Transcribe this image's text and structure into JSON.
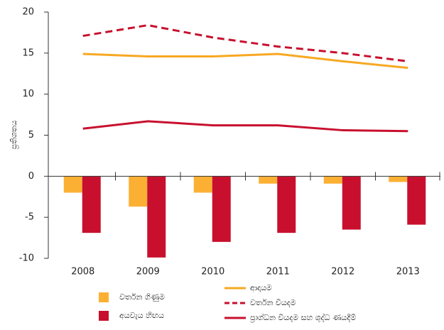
{
  "chart_data": {
    "type": "bar",
    "ylabel": "ප්‍රතිශතය",
    "categories": [
      "2008",
      "2009",
      "2010",
      "2011",
      "2012",
      "2013"
    ],
    "series": [
      {
        "name": "වර්තන ගිණුම",
        "kind": "bar",
        "color": "#fbb034",
        "values": [
          -2.0,
          -3.7,
          -2.0,
          -0.9,
          -0.9,
          -0.7
        ]
      },
      {
        "name": "අයවැය හිඟය",
        "kind": "bar",
        "color": "#c8102e",
        "values": [
          -6.9,
          -9.9,
          -8.0,
          -6.9,
          -6.5,
          -5.9
        ]
      },
      {
        "name": "ආදායම",
        "kind": "line",
        "color": "#f7a823",
        "dashed": false,
        "values": [
          14.9,
          14.6,
          14.6,
          14.9,
          14.0,
          13.2
        ]
      },
      {
        "name": "වර්තන වියදම",
        "kind": "line",
        "color": "#c8102e",
        "dashed": true,
        "values": [
          17.1,
          18.4,
          16.9,
          15.8,
          15.0,
          14.0
        ]
      },
      {
        "name": "ප්‍රාග්ධන වියදම සහ ශුද්ධ ණයදීම්",
        "kind": "line",
        "color": "#c8102e",
        "dashed": false,
        "values": [
          5.8,
          6.7,
          6.2,
          6.2,
          5.6,
          5.5
        ]
      }
    ],
    "ylim": [
      -10,
      20
    ],
    "yticks": [
      20,
      15,
      10,
      5,
      0,
      -5,
      -10
    ],
    "grid": false
  }
}
